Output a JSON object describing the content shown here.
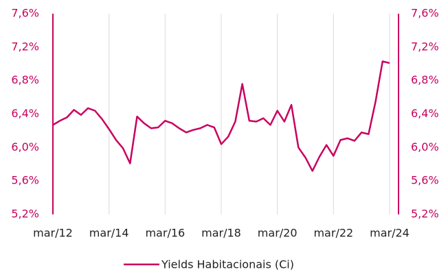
{
  "chart_data": {
    "type": "line",
    "categories": [
      "mar/12",
      null,
      null,
      null,
      null,
      null,
      null,
      null,
      "mar/14",
      null,
      null,
      null,
      null,
      null,
      null,
      null,
      "mar/16",
      null,
      null,
      null,
      null,
      null,
      null,
      null,
      "mar/18",
      null,
      null,
      null,
      null,
      null,
      null,
      null,
      "mar/20",
      null,
      null,
      null,
      null,
      null,
      null,
      null,
      "mar/22",
      null,
      null,
      null,
      null,
      null,
      null,
      null,
      "mar/24"
    ],
    "series": [
      {
        "name": "Yields Habitacionais (Ci)",
        "color": "#c8005f",
        "values": [
          6.27,
          6.32,
          6.36,
          6.45,
          6.39,
          6.47,
          6.44,
          6.34,
          6.22,
          6.09,
          5.99,
          5.81,
          6.37,
          6.29,
          6.23,
          6.24,
          6.32,
          6.29,
          6.23,
          6.18,
          6.21,
          6.23,
          6.27,
          6.24,
          6.04,
          6.13,
          6.31,
          6.76,
          6.32,
          6.31,
          6.35,
          6.27,
          6.44,
          6.31,
          6.51,
          6.0,
          5.88,
          5.72,
          5.89,
          6.03,
          5.9,
          6.09,
          6.11,
          6.08,
          6.18,
          6.16,
          6.55,
          7.03,
          7.01
        ]
      }
    ],
    "ylim": [
      5.2,
      7.6
    ],
    "yticks": [
      {
        "value": 5.2,
        "label": "5,2%"
      },
      {
        "value": 5.6,
        "label": "5,6%"
      },
      {
        "value": 6.0,
        "label": "6,0%"
      },
      {
        "value": 6.4,
        "label": "6,4%"
      },
      {
        "value": 6.8,
        "label": "6,8%"
      },
      {
        "value": 7.2,
        "label": "7,2%"
      },
      {
        "value": 7.6,
        "label": "7,6%"
      }
    ],
    "y2lim": [
      5.2,
      7.6
    ],
    "y2ticks": [
      {
        "value": 5.2,
        "label": "5,2%"
      },
      {
        "value": 5.6,
        "label": "5,6%"
      },
      {
        "value": 6.0,
        "label": "6,0%"
      },
      {
        "value": 6.4,
        "label": "6,4%"
      },
      {
        "value": 6.8,
        "label": "6,8%"
      },
      {
        "value": 7.2,
        "label": "7,2%"
      },
      {
        "value": 7.6,
        "label": "7,6%"
      }
    ],
    "grid": true,
    "legend": "bottom",
    "axis_color": "#c8005f"
  }
}
